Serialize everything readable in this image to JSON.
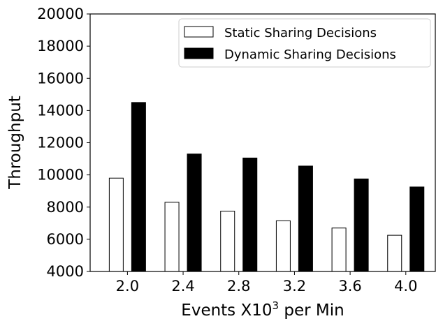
{
  "chart_data": {
    "type": "bar",
    "categories": [
      "2.0",
      "2.4",
      "2.8",
      "3.2",
      "3.6",
      "4.0"
    ],
    "series": [
      {
        "name": "Static Sharing Decisions",
        "values": [
          9800,
          8300,
          7750,
          7150,
          6700,
          6250
        ],
        "fill": "#ffffff",
        "stroke": "#000000"
      },
      {
        "name": "Dynamic Sharing Decisions",
        "values": [
          14500,
          11300,
          11050,
          10550,
          9750,
          9250
        ],
        "fill": "#000000",
        "stroke": "#000000"
      }
    ],
    "xlabel": "Events X10",
    "xlabel_superscript": "3",
    "xlabel_suffix": " per Min",
    "ylabel": "Throughput",
    "ylim": [
      4000,
      20000
    ],
    "yticks": [
      "4000",
      "6000",
      "8000",
      "10000",
      "12000",
      "14000",
      "16000",
      "18000",
      "20000"
    ],
    "legend_position": "upper-right",
    "grid": false
  }
}
